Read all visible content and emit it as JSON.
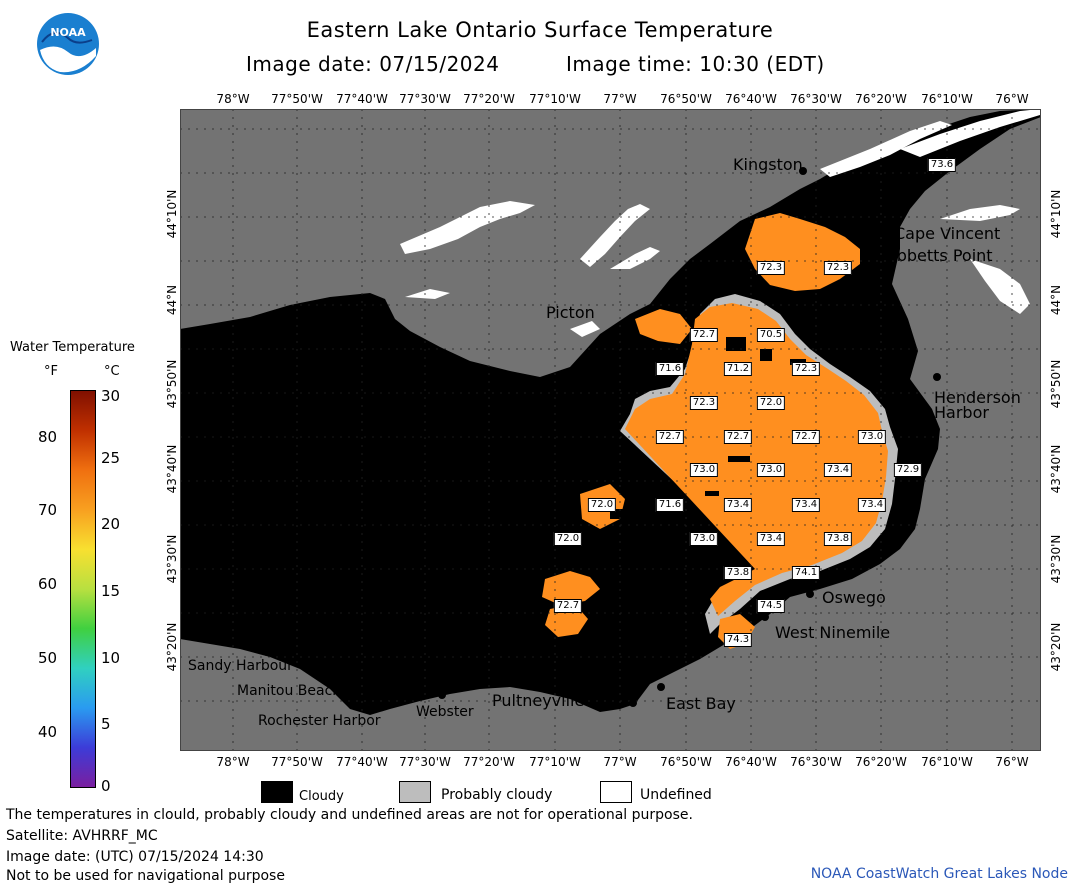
{
  "header": {
    "title": "Eastern Lake Ontario Surface Temperature",
    "image_date": "Image date: 07/15/2024",
    "image_time": "Image time: 10:30 (EDT)"
  },
  "logo": {
    "text": "NOAA"
  },
  "map": {
    "lon_labels": [
      "78°W",
      "77°50'W",
      "77°40'W",
      "77°30'W",
      "77°20'W",
      "77°10'W",
      "77°W",
      "76°50'W",
      "76°40'W",
      "76°30'W",
      "76°20'W",
      "76°10'W",
      "76°W"
    ],
    "lat_labels": [
      "44°10'N",
      "44°N",
      "43°50'N",
      "43°40'N",
      "43°30'N",
      "43°20'N"
    ],
    "places": {
      "kingston": "Kingston",
      "cape_vincent": "Cape Vincent",
      "tibbetts_point": "Tibbetts Point",
      "picton": "Picton",
      "henderson_harbor_1": "Henderson",
      "henderson_harbor_2": "Harbor",
      "oswego": "Oswego",
      "west_ninemile": "West Ninemile",
      "sandy_harbour": "Sandy Harbour",
      "manitou_beach": "Manitou Beach",
      "rochester_harbor": "Rochester Harbor",
      "webster": "Webster",
      "pultneyville": "Pultneyville",
      "east_bay": "East Bay"
    },
    "temperature_labels": [
      "73.6",
      "72.3",
      "72.3",
      "72.7",
      "70.5",
      "71.6",
      "71.2",
      "72.3",
      "72.3",
      "72.0",
      "72.7",
      "72.7",
      "72.7",
      "73.0",
      "73.0",
      "73.0",
      "73.4",
      "72.9",
      "72.0",
      "71.6",
      "73.4",
      "73.4",
      "73.4",
      "72.0",
      "73.0",
      "73.4",
      "73.8",
      "73.8",
      "74.1",
      "72.7",
      "74.5",
      "74.3"
    ]
  },
  "legend": {
    "title": "Water Temperature",
    "unit_f": "°F",
    "unit_c": "°C",
    "f_ticks": [
      "80",
      "70",
      "60",
      "50",
      "40"
    ],
    "c_ticks": [
      "30",
      "25",
      "20",
      "15",
      "10",
      "5",
      "0"
    ],
    "colors": [
      "#7a1fa0",
      "#3c3cd8",
      "#2a9bf0",
      "#30d0c0",
      "#40d040",
      "#b8e040",
      "#f8e030",
      "#f8a020",
      "#f07010",
      "#c03000",
      "#801000"
    ]
  },
  "key": {
    "cloudy": "Cloudy",
    "probably_cloudy": "Probably cloudy",
    "undefined": "Undefined"
  },
  "footer": {
    "line1": "The temperatures in clould, probably cloudy and undefined areas are not for operational purpose.",
    "line2": "Satellite: AVHRRF_MC",
    "line3": "Image date: (UTC) 07/15/2024  14:30",
    "line4": "Not to be used for navigational purpose",
    "credit": "NOAA CoastWatch Great Lakes Node"
  }
}
